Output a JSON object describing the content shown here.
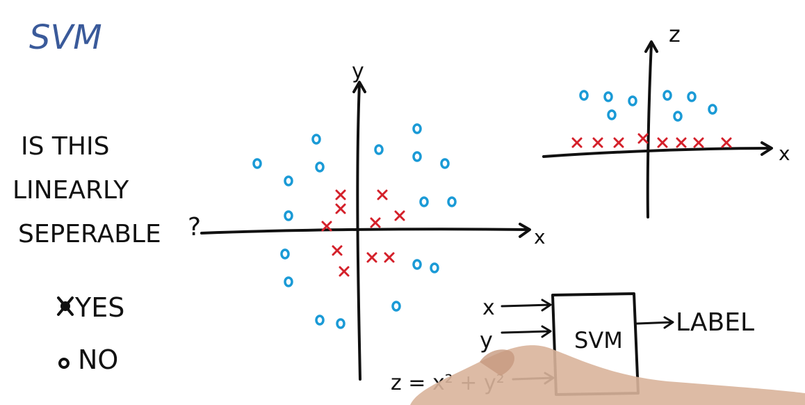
{
  "title": "SVM",
  "question": {
    "line1": "IS THIS",
    "line2": "LINEARLY",
    "line3": "SEPERABLE",
    "qmark": "?"
  },
  "options": {
    "yes": "YES",
    "no": "NO"
  },
  "plot_left": {
    "x_axis_label": "x",
    "y_axis_label": "y",
    "o_points": [
      [
        -145,
        -100
      ],
      [
        -100,
        -75
      ],
      [
        -60,
        -135
      ],
      [
        -55,
        -95
      ],
      [
        30,
        -120
      ],
      [
        85,
        -150
      ],
      [
        85,
        -110
      ],
      [
        125,
        -100
      ],
      [
        95,
        -45
      ],
      [
        135,
        -45
      ],
      [
        -100,
        -25
      ],
      [
        -105,
        30
      ],
      [
        -100,
        70
      ],
      [
        -55,
        125
      ],
      [
        -25,
        130
      ],
      [
        85,
        45
      ],
      [
        110,
        50
      ],
      [
        55,
        105
      ]
    ],
    "x_points": [
      [
        -25,
        -55
      ],
      [
        -25,
        -35
      ],
      [
        -45,
        -10
      ],
      [
        35,
        -55
      ],
      [
        25,
        -15
      ],
      [
        60,
        -25
      ],
      [
        -30,
        25
      ],
      [
        -20,
        55
      ],
      [
        20,
        35
      ],
      [
        45,
        35
      ]
    ]
  },
  "plot_right": {
    "x_axis_label": "x",
    "z_axis_label": "z",
    "o_points": [
      [
        -95,
        -80
      ],
      [
        -60,
        -78
      ],
      [
        -25,
        -72
      ],
      [
        -55,
        -52
      ],
      [
        25,
        -80
      ],
      [
        60,
        -78
      ],
      [
        90,
        -60
      ],
      [
        40,
        -50
      ]
    ],
    "x_points": [
      [
        -105,
        -12
      ],
      [
        -75,
        -12
      ],
      [
        -45,
        -12
      ],
      [
        -10,
        -18
      ],
      [
        18,
        -12
      ],
      [
        45,
        -12
      ],
      [
        70,
        -12
      ],
      [
        110,
        -12
      ]
    ]
  },
  "svm_box": {
    "label": "SVM",
    "input_x": "x",
    "input_y": "y",
    "input_z": "z = x² + y²",
    "output": "LABEL"
  },
  "colors": {
    "ink": "#111111",
    "blue_o": "#1a9ad6",
    "red_x": "#d4202a",
    "title_blue": "#3a5a9a",
    "hand_skin": "#d9b49b"
  }
}
